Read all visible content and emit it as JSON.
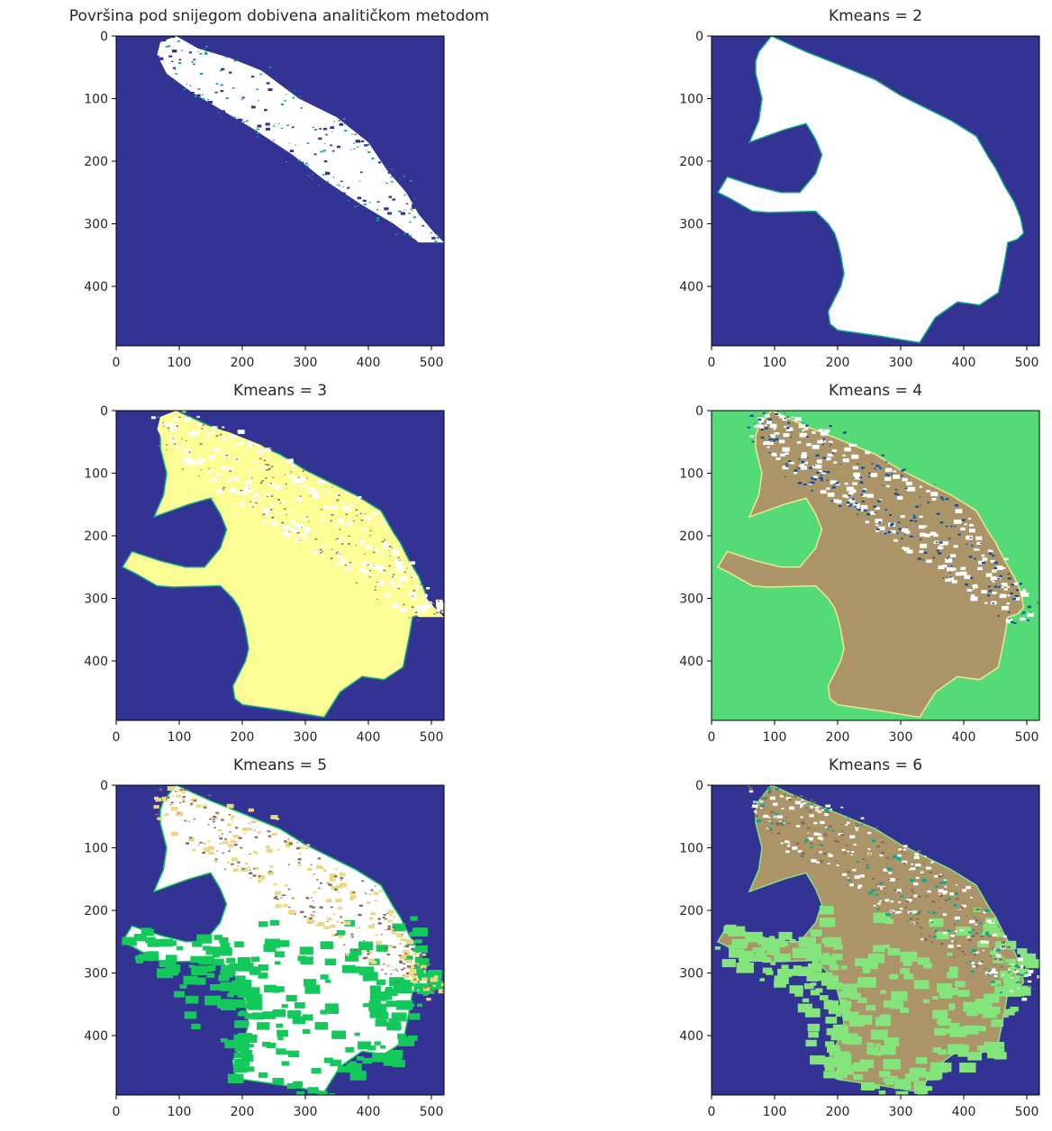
{
  "figure": {
    "colors": {
      "background": "#333394",
      "white": "#ffffff",
      "yellow": "#fdfd96",
      "tan": "#ecd884",
      "brown": "#856a5f",
      "khaki": "#aa9468",
      "green": "#54db78",
      "bright_green": "#14c95c",
      "light_green": "#84e57c",
      "blue": "#0b4e9c",
      "teal": "#12a78a",
      "edge": "#f0e68c"
    }
  },
  "chart_data": [
    {
      "type": "heatmap",
      "title": "Površina pod snijegom dobivena analitičkom metodom",
      "x_ticks": [
        "0",
        "100",
        "200",
        "300",
        "400",
        "500"
      ],
      "y_ticks": [
        "0",
        "100",
        "200",
        "300",
        "400"
      ],
      "xlim": [
        0,
        520
      ],
      "ylim": [
        495,
        0
      ],
      "classes_visible": [
        "white",
        "background"
      ]
    },
    {
      "type": "heatmap",
      "title": "Kmeans = 2",
      "x_ticks": [
        "0",
        "100",
        "200",
        "300",
        "400",
        "500"
      ],
      "y_ticks": [
        "0",
        "100",
        "200",
        "300",
        "400"
      ],
      "xlim": [
        0,
        520
      ],
      "ylim": [
        495,
        0
      ],
      "classes_visible": [
        "white",
        "background"
      ]
    },
    {
      "type": "heatmap",
      "title": "Kmeans = 3",
      "x_ticks": [
        "0",
        "100",
        "200",
        "300",
        "400",
        "500"
      ],
      "y_ticks": [
        "0",
        "100",
        "200",
        "300",
        "400"
      ],
      "xlim": [
        0,
        520
      ],
      "ylim": [
        495,
        0
      ],
      "classes_visible": [
        "yellow",
        "white",
        "background"
      ]
    },
    {
      "type": "heatmap",
      "title": "Kmeans = 4",
      "x_ticks": [
        "0",
        "100",
        "200",
        "300",
        "400",
        "500"
      ],
      "y_ticks": [
        "0",
        "100",
        "200",
        "300",
        "400"
      ],
      "xlim": [
        0,
        520
      ],
      "ylim": [
        495,
        0
      ],
      "classes_visible": [
        "green",
        "khaki",
        "blue",
        "white"
      ]
    },
    {
      "type": "heatmap",
      "title": "Kmeans = 5",
      "x_ticks": [
        "0",
        "100",
        "200",
        "300",
        "400",
        "500"
      ],
      "y_ticks": [
        "0",
        "100",
        "200",
        "300",
        "400"
      ],
      "xlim": [
        0,
        520
      ],
      "ylim": [
        495,
        0
      ],
      "classes_visible": [
        "background",
        "white",
        "bright_green",
        "tan",
        "brown"
      ]
    },
    {
      "type": "heatmap",
      "title": "Kmeans = 6",
      "x_ticks": [
        "0",
        "100",
        "200",
        "300",
        "400",
        "500"
      ],
      "y_ticks": [
        "0",
        "100",
        "200",
        "300",
        "400"
      ],
      "xlim": [
        0,
        520
      ],
      "ylim": [
        495,
        0
      ],
      "classes_visible": [
        "background",
        "khaki",
        "light_green",
        "white",
        "brown",
        "teal"
      ]
    }
  ]
}
